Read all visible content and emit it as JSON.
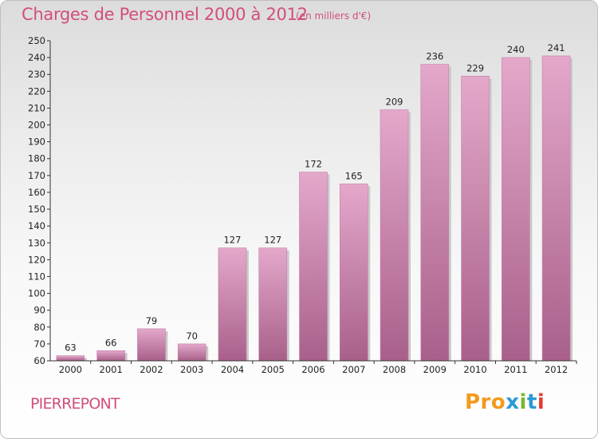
{
  "header": {
    "title": "Charges de Personnel 2000 à 2012",
    "subtitle": "(en milliers d'€)"
  },
  "footer": {
    "commune": "PIERREPONT",
    "logo_parts": [
      "Pro",
      "x",
      "i",
      "t",
      "i"
    ]
  },
  "colors": {
    "title": "#d24f78",
    "bar_light": "#e4a8cb",
    "bar_dark": "#a8608a",
    "logo": [
      "#f39a1e",
      "#2a9ad6",
      "#7ab82a",
      "#2a9ad6",
      "#e53a2f"
    ]
  },
  "chart_data": {
    "type": "bar",
    "title": "Charges de Personnel 2000 à 2012",
    "subtitle": "(en milliers d'€)",
    "categories": [
      "2000",
      "2001",
      "2002",
      "2003",
      "2004",
      "2005",
      "2006",
      "2007",
      "2008",
      "2009",
      "2010",
      "2011",
      "2012"
    ],
    "values": [
      63,
      66,
      79,
      70,
      127,
      127,
      172,
      165,
      209,
      236,
      229,
      240,
      241
    ],
    "ylim": [
      60,
      250
    ],
    "yticks": [
      60,
      70,
      80,
      90,
      100,
      110,
      120,
      130,
      140,
      150,
      160,
      170,
      180,
      190,
      200,
      210,
      220,
      230,
      240,
      250
    ],
    "grid": false,
    "data_labels": true
  }
}
